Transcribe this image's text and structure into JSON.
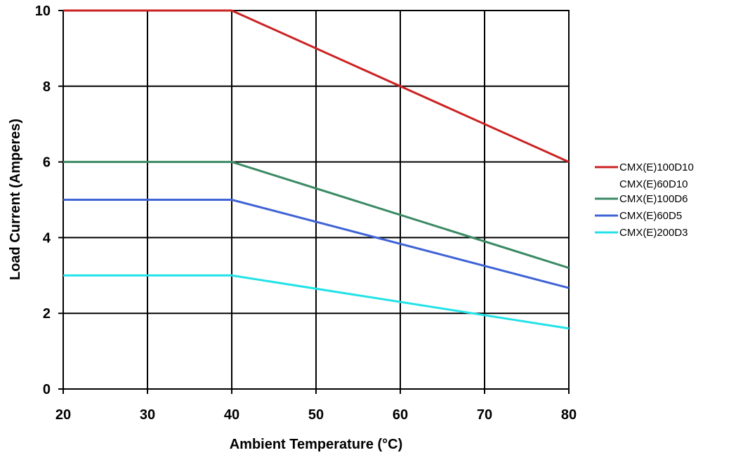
{
  "chart_data": {
    "type": "line",
    "title": "",
    "xlabel": "Ambient Temperature (°C)",
    "ylabel": "Load Current (Amperes)",
    "xlim": [
      20,
      80
    ],
    "ylim": [
      0,
      10
    ],
    "x_ticks": [
      "20",
      "30",
      "40",
      "50",
      "60",
      "70",
      "80"
    ],
    "y_ticks": [
      "0",
      "2",
      "4",
      "6",
      "8",
      "10"
    ],
    "grid": true,
    "legend_position": "right",
    "series": [
      {
        "name": "CMX(E)100D10",
        "name_line2": "CMX(E)60D10",
        "color": "#cc2222",
        "x": [
          20,
          40,
          80
        ],
        "y": [
          10,
          10,
          6
        ]
      },
      {
        "name": "CMX(E)100D6",
        "color": "#3a8a64",
        "x": [
          20,
          40,
          80
        ],
        "y": [
          6,
          6,
          3.2
        ]
      },
      {
        "name": "CMX(E)60D5",
        "color": "#3f63d6",
        "x": [
          20,
          40,
          80
        ],
        "y": [
          5,
          5,
          2.67
        ]
      },
      {
        "name": "CMX(E)200D3",
        "color": "#22e2e8",
        "x": [
          20,
          40,
          80
        ],
        "y": [
          3,
          3,
          1.6
        ]
      }
    ]
  }
}
